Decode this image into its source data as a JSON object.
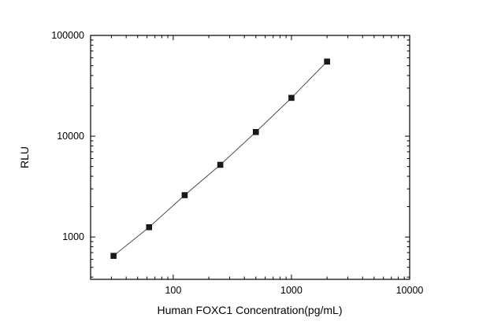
{
  "figure": {
    "background": "#ffffff",
    "axis_color": "#000000",
    "text_color": "#000000"
  },
  "chart_data": {
    "type": "scatter",
    "title": "",
    "xlabel": "Human FOXC1 Concentration(pg/mL)",
    "ylabel": "RLU",
    "xscale": "log",
    "yscale": "log",
    "xlim": [
      20,
      10000
    ],
    "ylim": [
      380,
      100000
    ],
    "x_ticks": [
      100,
      1000,
      10000
    ],
    "y_ticks": [
      1000,
      10000,
      100000
    ],
    "minor_ticks": true,
    "grid": false,
    "legend": null,
    "series": [
      {
        "name": "standard-curve",
        "marker": "filled-square",
        "marker_size": 7,
        "marker_color": "#1a1a1a",
        "line_color": "#4d4d4d",
        "points": [
          {
            "x": 31.25,
            "y": 650
          },
          {
            "x": 62.5,
            "y": 1250
          },
          {
            "x": 125,
            "y": 2600
          },
          {
            "x": 250,
            "y": 5200
          },
          {
            "x": 500,
            "y": 11000
          },
          {
            "x": 1000,
            "y": 24000
          },
          {
            "x": 2000,
            "y": 55000
          }
        ]
      }
    ]
  }
}
